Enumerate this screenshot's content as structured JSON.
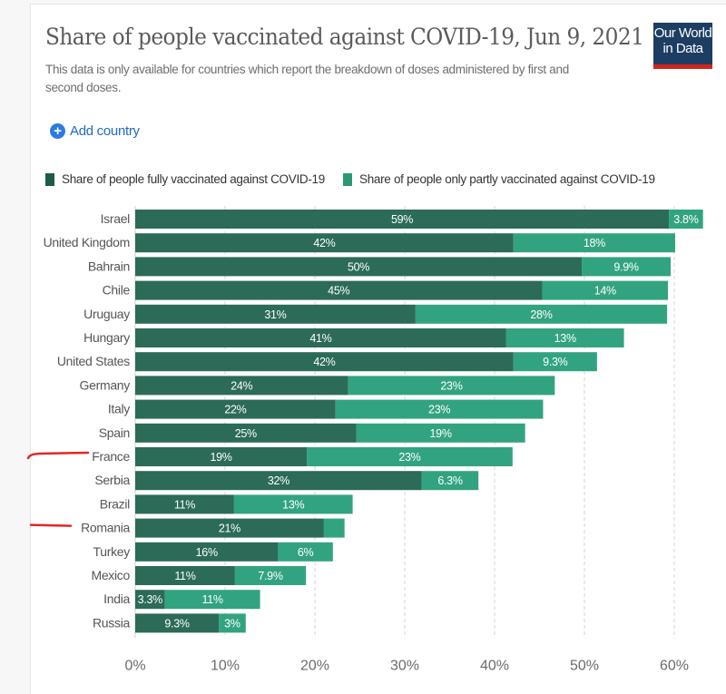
{
  "header": {
    "title": "Share of people vaccinated against COVID-19, Jun 9, 2021",
    "subtitle": "This data is only available for countries which report the breakdown of doses administered by first and second doses.",
    "logo_line1": "Our World",
    "logo_line2": "in Data"
  },
  "controls": {
    "add_country_label": "Add country",
    "add_icon": "plus-circle-icon"
  },
  "colors": {
    "fully": "#2b6b58",
    "partly": "#32a381",
    "accent_blue": "#2169c5",
    "logo_bg": "#1d3d63",
    "logo_stripe": "#ce261e",
    "annotation": "#e0262a"
  },
  "legend": [
    {
      "label": "Share of people fully vaccinated against COVID-19",
      "color": "#1f5c48"
    },
    {
      "label": "Share of people only partly vaccinated against COVID-19",
      "color": "#2a9a74"
    }
  ],
  "annotations": [
    "France",
    "Romania"
  ],
  "chart_data": {
    "type": "bar",
    "orientation": "horizontal",
    "stacked": true,
    "title": "Share of people vaccinated against COVID-19, Jun 9, 2021",
    "xlabel": "",
    "ylabel": "",
    "xlim": [
      0,
      60
    ],
    "xticks": [
      "0%",
      "10%",
      "20%",
      "30%",
      "40%",
      "50%",
      "60%"
    ],
    "xtick_values": [
      0,
      10,
      20,
      30,
      40,
      50,
      60
    ],
    "grid": "vertical dashed",
    "legend_position": "top",
    "categories": [
      "Israel",
      "United Kingdom",
      "Bahrain",
      "Chile",
      "Uruguay",
      "Hungary",
      "United States",
      "Germany",
      "Italy",
      "Spain",
      "France",
      "Serbia",
      "Brazil",
      "Romania",
      "Turkey",
      "Mexico",
      "India",
      "Russia"
    ],
    "series": [
      {
        "name": "Share of people fully vaccinated against COVID-19",
        "values": [
          59.4,
          42.1,
          49.7,
          45.3,
          31.2,
          41.3,
          42.1,
          23.7,
          22.3,
          24.6,
          19.1,
          31.9,
          11.0,
          21.0,
          15.9,
          11.1,
          3.3,
          9.3
        ],
        "labels": [
          "59%",
          "42%",
          "50%",
          "45%",
          "31%",
          "41%",
          "42%",
          "24%",
          "22%",
          "25%",
          "19%",
          "32%",
          "11%",
          "21%",
          "16%",
          "11%",
          "3.3%",
          "9.3%"
        ]
      },
      {
        "name": "Share of people only partly vaccinated against COVID-19",
        "values": [
          3.8,
          18.0,
          9.9,
          14.0,
          28.0,
          13.1,
          9.3,
          23.0,
          23.1,
          18.8,
          22.9,
          6.3,
          13.2,
          2.3,
          6.1,
          7.9,
          10.6,
          3.0
        ],
        "labels": [
          "3.8%",
          "18%",
          "9.9%",
          "14%",
          "28%",
          "13%",
          "9.3%",
          "23%",
          "23%",
          "19%",
          "23%",
          "6.3%",
          "13%",
          "",
          "6%",
          "7.9%",
          "11%",
          "3%"
        ]
      }
    ]
  }
}
